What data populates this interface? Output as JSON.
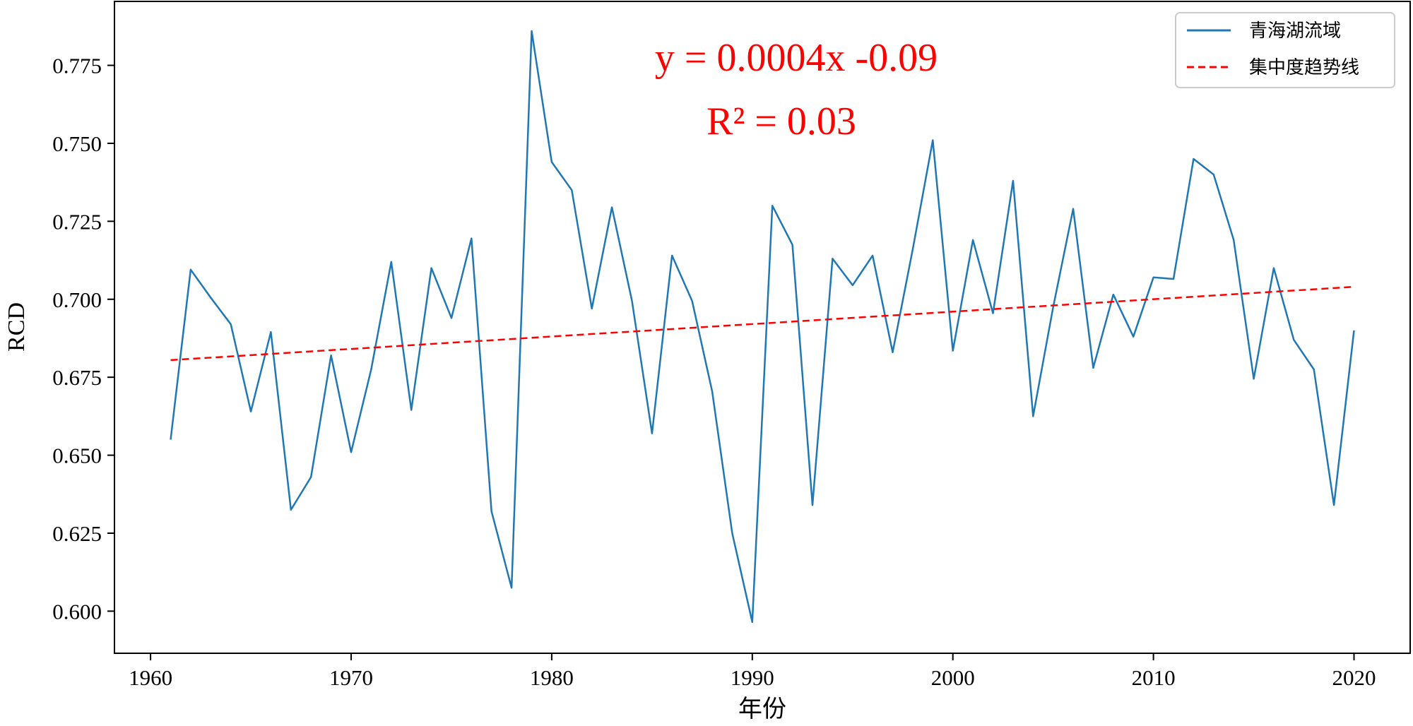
{
  "chart_data": {
    "type": "line",
    "title": "",
    "xlabel": "年份",
    "ylabel": "RCD",
    "xlim": [
      1958.2,
      2022.8
    ],
    "ylim": [
      0.5865,
      0.7955
    ],
    "xticks": [
      1960,
      1970,
      1980,
      1990,
      2000,
      2010,
      2020
    ],
    "yticks": [
      0.6,
      0.625,
      0.65,
      0.675,
      0.7,
      0.725,
      0.75,
      0.775
    ],
    "ytick_labels": [
      "0.600",
      "0.625",
      "0.650",
      "0.675",
      "0.700",
      "0.725",
      "0.750",
      "0.775"
    ],
    "grid": false,
    "legend_position": "top-right",
    "series": [
      {
        "name": "青海湖流域",
        "color": "#1f77b4",
        "style": "solid",
        "x": [
          1961,
          1962,
          1963,
          1964,
          1965,
          1966,
          1967,
          1968,
          1969,
          1970,
          1971,
          1972,
          1973,
          1974,
          1975,
          1976,
          1977,
          1978,
          1979,
          1980,
          1981,
          1982,
          1983,
          1984,
          1985,
          1986,
          1987,
          1988,
          1989,
          1990,
          1991,
          1992,
          1993,
          1994,
          1995,
          1996,
          1997,
          1998,
          1999,
          2000,
          2001,
          2002,
          2003,
          2004,
          2005,
          2006,
          2007,
          2008,
          2009,
          2010,
          2011,
          2012,
          2013,
          2014,
          2015,
          2016,
          2017,
          2018,
          2019,
          2020
        ],
        "y": [
          0.655,
          0.7095,
          0.7005,
          0.692,
          0.664,
          0.6895,
          0.6325,
          0.643,
          0.682,
          0.651,
          0.6775,
          0.712,
          0.6645,
          0.71,
          0.694,
          0.7195,
          0.632,
          0.6075,
          0.786,
          0.744,
          0.735,
          0.697,
          0.7295,
          0.6995,
          0.657,
          0.714,
          0.6995,
          0.6705,
          0.625,
          0.5965,
          0.73,
          0.7175,
          0.634,
          0.713,
          0.7045,
          0.714,
          0.683,
          0.716,
          0.751,
          0.6835,
          0.719,
          0.6955,
          0.738,
          0.6625,
          0.6975,
          0.729,
          0.678,
          0.7015,
          0.688,
          0.707,
          0.7065,
          0.745,
          0.74,
          0.719,
          0.6745,
          0.71,
          0.687,
          0.6775,
          0.634,
          0.69
        ]
      },
      {
        "name": "集中度趋势线",
        "color": "#ff0000",
        "style": "dashed",
        "x": [
          1961,
          2020
        ],
        "y": [
          0.6805,
          0.704
        ]
      }
    ],
    "annotations": [
      {
        "text": "y = 0.0004x -0.09"
      },
      {
        "text": "R² = 0.03"
      }
    ]
  }
}
